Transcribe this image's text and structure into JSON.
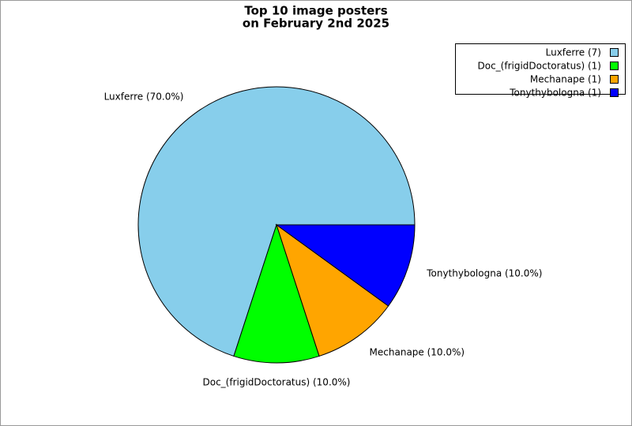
{
  "chart_data": {
    "type": "pie",
    "title": [
      "Top 10 image posters",
      "on February 2nd 2025"
    ],
    "categories": [
      "Luxferre",
      "Doc_(frigidDoctoratus)",
      "Mechanape",
      "Tonythybologna"
    ],
    "values": [
      7,
      1,
      1,
      1
    ],
    "slice_labels": [
      "Luxferre (70.0%)",
      "Doc_(frigidDoctoratus) (10.0%)",
      "Mechanape (10.0%)",
      "Tonythybologna (10.0%)"
    ],
    "legend_labels": [
      "Luxferre (7)",
      "Doc_(frigidDoctoratus) (1)",
      "Mechanape (1)",
      "Tonythybologna (1)"
    ],
    "colors": [
      "#87ceeb",
      "#00ff00",
      "#ffa500",
      "#0000ff"
    ],
    "legend": "top-right"
  }
}
